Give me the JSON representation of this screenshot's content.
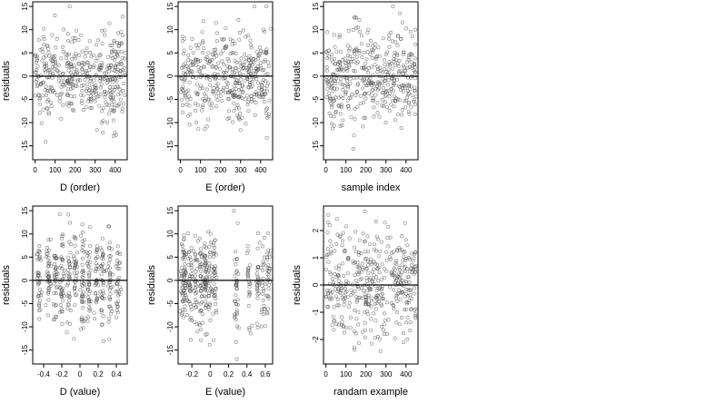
{
  "chart_data": [
    {
      "type": "scatter",
      "xlabel": "D (order)",
      "ylabel": "residuals",
      "xlim": [
        -12,
        460
      ],
      "ylim": [
        -18,
        16
      ],
      "xticks": [
        0,
        100,
        200,
        300,
        400
      ],
      "yticks": [
        -15,
        -10,
        -5,
        0,
        5,
        10,
        15
      ],
      "hline": 0,
      "grid": false,
      "n_points": 440,
      "x": [
        0,
        460
      ],
      "y": [
        -17,
        15
      ],
      "x_spread": "uniform",
      "y_sd": 5
    },
    {
      "type": "scatter",
      "xlabel": "E (order)",
      "ylabel": "residuals",
      "xlim": [
        -12,
        460
      ],
      "ylim": [
        -18,
        16
      ],
      "xticks": [
        0,
        100,
        200,
        300,
        400
      ],
      "yticks": [
        -15,
        -10,
        -5,
        0,
        5,
        10,
        15
      ],
      "hline": 0,
      "grid": false,
      "n_points": 440,
      "x": [
        0,
        460
      ],
      "y": [
        -17,
        15
      ],
      "x_spread": "uniform",
      "y_sd": 5
    },
    {
      "type": "scatter",
      "xlabel": "sample index",
      "ylabel": "residuals",
      "xlim": [
        -12,
        460
      ],
      "ylim": [
        -18,
        16
      ],
      "xticks": [
        0,
        100,
        200,
        300,
        400
      ],
      "yticks": [
        -15,
        -10,
        -5,
        0,
        5,
        10,
        15
      ],
      "hline": 0,
      "grid": false,
      "n_points": 440,
      "x": [
        0,
        460
      ],
      "y": [
        -17,
        15
      ],
      "x_spread": "uniform",
      "y_sd": 5
    },
    {
      "type": "scatter",
      "xlabel": "D (value)",
      "ylabel": "residuals",
      "xlim": [
        -0.52,
        0.52
      ],
      "ylim": [
        -18,
        16
      ],
      "xticks": [
        -0.4,
        -0.2,
        0.0,
        0.2,
        0.4
      ],
      "yticks": [
        -15,
        -10,
        -5,
        0,
        5,
        10,
        15
      ],
      "hline": 0,
      "grid": false,
      "n_points": 440,
      "x_clusters": [
        -0.45,
        -0.35,
        -0.27,
        -0.2,
        -0.12,
        -0.05,
        0.03,
        0.1,
        0.18,
        0.25,
        0.33,
        0.42
      ],
      "y_sd": 5
    },
    {
      "type": "scatter",
      "xlabel": "E (value)",
      "ylabel": "residuals",
      "xlim": [
        -0.35,
        0.68
      ],
      "ylim": [
        -18,
        16
      ],
      "xticks": [
        -0.2,
        0.0,
        0.2,
        0.4,
        0.6
      ],
      "yticks": [
        -15,
        -10,
        -5,
        0,
        5,
        10,
        15
      ],
      "hline": 0,
      "grid": false,
      "n_points": 440,
      "x_clusters": [
        -0.3,
        -0.28,
        -0.22,
        -0.16,
        -0.1,
        -0.05,
        0.0,
        0.05,
        0.28,
        0.42,
        0.52,
        0.58,
        0.63
      ],
      "y_sd": 5
    },
    {
      "type": "scatter",
      "xlabel": "randam example",
      "ylabel": "residuals",
      "xlim": [
        -12,
        460
      ],
      "ylim": [
        -2.9,
        2.9
      ],
      "xticks": [
        0,
        100,
        200,
        300,
        400
      ],
      "yticks": [
        -2,
        -1,
        0,
        1,
        2
      ],
      "hline": 0,
      "grid": false,
      "n_points": 440,
      "x": [
        0,
        460
      ],
      "y": [
        -2.7,
        2.7
      ],
      "x_spread": "uniform",
      "y_sd": 1
    }
  ],
  "style": {
    "point_color": "#555555",
    "axis_color": "#000000",
    "hline_color": "#000000",
    "background": "#ffffff"
  }
}
